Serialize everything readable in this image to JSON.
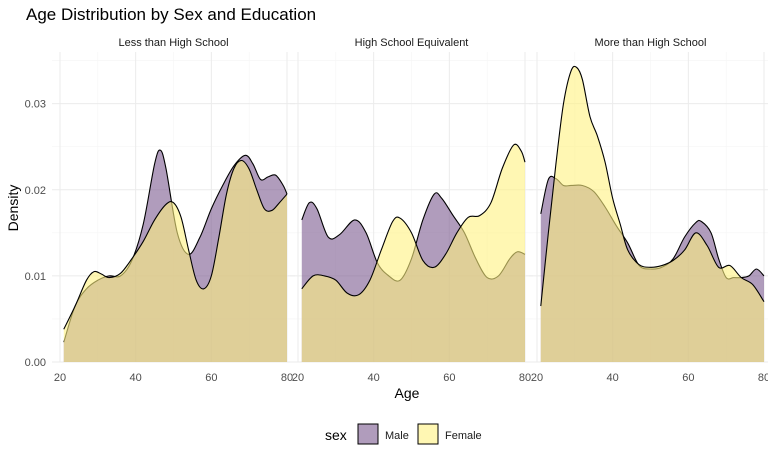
{
  "chart_data": {
    "type": "area",
    "subtype": "density",
    "title": "Age Distribution by Sex and Education",
    "xlabel": "Age",
    "ylabel": "Density",
    "xlim": [
      20,
      80
    ],
    "ylim": [
      0,
      0.036
    ],
    "x_ticks": [
      20,
      40,
      60,
      80
    ],
    "y_ticks": [
      0,
      0.01,
      0.02,
      0.03
    ],
    "y_tick_labels": [
      "0.00",
      "0.01",
      "0.02",
      "0.03"
    ],
    "grid": true,
    "legend": {
      "title": "sex",
      "position": "bottom",
      "entries": [
        {
          "label": "Male",
          "color": "#5f3b75"
        },
        {
          "label": "Female",
          "color": "#fff27f"
        }
      ]
    },
    "colors": {
      "Male": "#7b5a8f",
      "Female": "#fff281"
    },
    "fill_opacity": 0.6,
    "facets": [
      {
        "label": "Less than High School",
        "series": [
          {
            "name": "Male",
            "x": [
              21,
              24,
              27,
              30,
              33,
              36,
              39,
              42,
              45,
              46.5,
              48,
              51,
              54,
              57,
              60,
              63,
              66,
              69,
              71,
              73,
              75,
              77,
              79,
              80
            ],
            "y": [
              0.0023,
              0.0065,
              0.0085,
              0.0095,
              0.01,
              0.01,
              0.0118,
              0.016,
              0.023,
              0.0246,
              0.0225,
              0.015,
              0.0125,
              0.0145,
              0.0178,
              0.0205,
              0.0228,
              0.024,
              0.023,
              0.0212,
              0.0215,
              0.0217,
              0.0205,
              0.0195
            ]
          },
          {
            "name": "Female",
            "x": [
              21,
              24,
              27,
              29,
              31,
              33,
              36,
              39,
              42,
              45,
              48,
              50,
              52,
              54,
              56,
              58,
              60,
              62,
              64,
              66,
              68,
              70,
              72,
              74,
              76,
              78,
              80
            ],
            "y": [
              0.0038,
              0.0065,
              0.0095,
              0.0105,
              0.0102,
              0.0098,
              0.0103,
              0.012,
              0.014,
              0.0165,
              0.0183,
              0.0185,
              0.0168,
              0.013,
              0.0095,
              0.0085,
              0.01,
              0.0145,
              0.0195,
              0.0225,
              0.0234,
              0.0224,
              0.02,
              0.0178,
              0.0176,
              0.0185,
              0.0195
            ]
          }
        ]
      },
      {
        "label": "High School Equivalent",
        "series": [
          {
            "name": "Male",
            "x": [
              21,
              23,
              25,
              28,
              31,
              35,
              38,
              41,
              44,
              47,
              50,
              53,
              56,
              58,
              61,
              64,
              67,
              70,
              73,
              76,
              78,
              80
            ],
            "y": [
              0.0165,
              0.0185,
              0.0178,
              0.0145,
              0.0148,
              0.0165,
              0.015,
              0.0115,
              0.01,
              0.0095,
              0.012,
              0.0165,
              0.0195,
              0.019,
              0.017,
              0.015,
              0.012,
              0.0098,
              0.01,
              0.012,
              0.0128,
              0.0125
            ]
          },
          {
            "name": "Female",
            "x": [
              21,
              24,
              27,
              30,
              33,
              36,
              39,
              42,
              45,
              47,
              50,
              53,
              56,
              59,
              62,
              65,
              68,
              71,
              74,
              77,
              79,
              80
            ],
            "y": [
              0.0085,
              0.01,
              0.01,
              0.0095,
              0.008,
              0.0078,
              0.0095,
              0.013,
              0.0163,
              0.0167,
              0.015,
              0.0118,
              0.011,
              0.0125,
              0.015,
              0.0168,
              0.017,
              0.0185,
              0.0225,
              0.0252,
              0.0245,
              0.0232
            ]
          }
        ]
      },
      {
        "label": "More than High School",
        "series": [
          {
            "name": "Male",
            "x": [
              21,
              23,
              25,
              27,
              29,
              32,
              35,
              38,
              41,
              44,
              47,
              50,
              53,
              56,
              59,
              62,
              63.5,
              66,
              68,
              70,
              72,
              74,
              76,
              78,
              80
            ],
            "y": [
              0.0172,
              0.0212,
              0.0213,
              0.0205,
              0.0205,
              0.0205,
              0.0198,
              0.018,
              0.0158,
              0.0138,
              0.0112,
              0.0108,
              0.011,
              0.012,
              0.0145,
              0.0162,
              0.0163,
              0.015,
              0.012,
              0.0098,
              0.0098,
              0.0098,
              0.01,
              0.0108,
              0.01
            ]
          },
          {
            "name": "Female",
            "x": [
              21,
              23,
              25,
              27,
              29,
              30.5,
              32,
              34,
              36,
              38,
              40,
              42,
              44,
              47,
              50,
              53,
              56,
              59,
              62,
              65,
              68,
              71,
              74,
              77,
              80
            ],
            "y": [
              0.0065,
              0.015,
              0.023,
              0.03,
              0.0338,
              0.0342,
              0.0328,
              0.0285,
              0.0262,
              0.0232,
              0.019,
              0.016,
              0.013,
              0.0113,
              0.011,
              0.0112,
              0.0118,
              0.013,
              0.015,
              0.0135,
              0.011,
              0.0112,
              0.0098,
              0.009,
              0.007
            ]
          }
        ]
      }
    ]
  }
}
